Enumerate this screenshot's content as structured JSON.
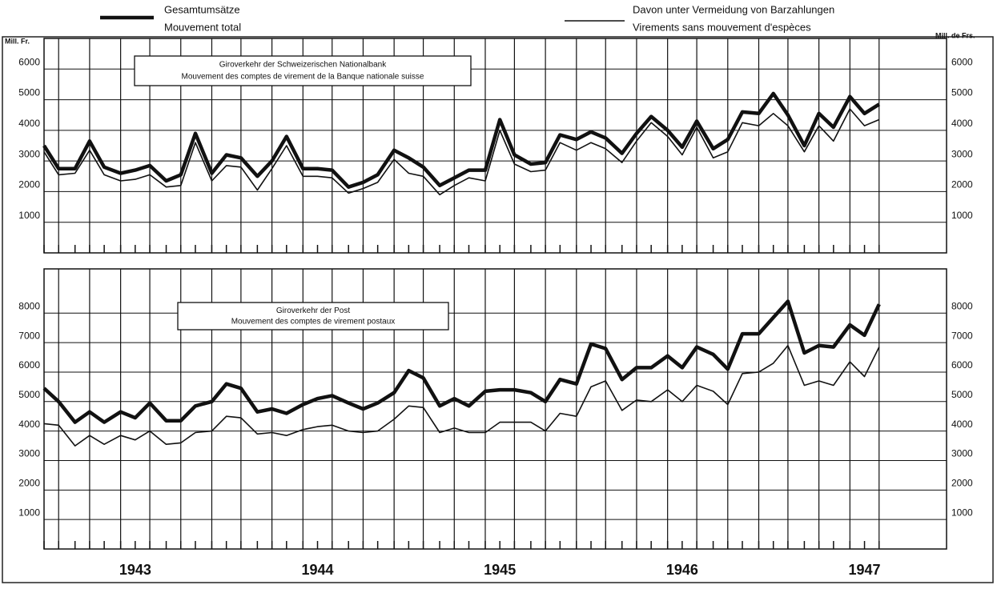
{
  "legend": [
    {
      "lines": [
        "Gesamtumsätze",
        "Mouvement total"
      ],
      "style": "thick"
    },
    {
      "lines": [
        "Davon unter Vermeidung von Barzahlungen",
        "Virements sans mouvement d'espèces"
      ],
      "style": "thin"
    }
  ],
  "chart_data": [
    {
      "type": "line",
      "title": "Giroverkehr der Schweizerischen Nationalbank",
      "subtitle": "Mouvement des comptes de virement de la Banque nationale suisse",
      "ylabel": "Mill. Fr.",
      "ylabel_right": "Mill. de Frs.",
      "ylim": [
        0,
        7000
      ],
      "yticks": [
        1000,
        2000,
        3000,
        4000,
        5000,
        6000
      ],
      "xlim": [
        1943,
        1947.95
      ],
      "grid": true,
      "x": [
        1943.0,
        1943.08,
        1943.17,
        1943.25,
        1943.33,
        1943.42,
        1943.5,
        1943.58,
        1943.67,
        1943.75,
        1943.83,
        1943.92,
        1944.0,
        1944.08,
        1944.17,
        1944.25,
        1944.33,
        1944.42,
        1944.5,
        1944.58,
        1944.67,
        1944.75,
        1944.83,
        1944.92,
        1945.0,
        1945.08,
        1945.17,
        1945.25,
        1945.33,
        1945.42,
        1945.5,
        1945.58,
        1945.67,
        1945.75,
        1945.83,
        1945.92,
        1946.0,
        1946.08,
        1946.17,
        1946.25,
        1946.33,
        1946.42,
        1946.5,
        1946.58,
        1946.67,
        1946.75,
        1946.83,
        1946.92,
        1947.0,
        1947.08,
        1947.17,
        1947.25,
        1947.33,
        1947.42,
        1947.5,
        1947.58
      ],
      "series": [
        {
          "style": "thick",
          "color": "#111111",
          "values": [
            3500,
            2750,
            2750,
            3650,
            2800,
            2600,
            2700,
            2850,
            2350,
            2550,
            3900,
            2600,
            3200,
            3100,
            2500,
            3000,
            3800,
            2750,
            2750,
            2700,
            2150,
            2300,
            2550,
            3350,
            3100,
            2800,
            2200,
            2450,
            2700,
            2700,
            4350,
            3200,
            2900,
            2950,
            3850,
            3700,
            3950,
            3750,
            3250,
            3900,
            4450,
            4000,
            3450,
            4300,
            3400,
            3700,
            4600,
            4550,
            5200,
            4500,
            3500,
            4550,
            4100,
            5100,
            4550,
            4850
          ]
        },
        {
          "style": "thin",
          "color": "#111111",
          "values": [
            3300,
            2550,
            2600,
            3350,
            2550,
            2350,
            2400,
            2550,
            2150,
            2200,
            3600,
            2350,
            2850,
            2800,
            2050,
            2750,
            3500,
            2500,
            2500,
            2450,
            1950,
            2100,
            2300,
            3050,
            2600,
            2500,
            1900,
            2200,
            2450,
            2350,
            4000,
            2900,
            2650,
            2700,
            3600,
            3350,
            3600,
            3400,
            2950,
            3650,
            4250,
            3800,
            3200,
            4100,
            3100,
            3300,
            4250,
            4150,
            4550,
            4150,
            3300,
            4150,
            3650,
            4700,
            4150,
            4350
          ]
        }
      ]
    },
    {
      "type": "line",
      "title": "Giroverkehr der Post",
      "subtitle": "Mouvement des comptes de virement postaux",
      "ylim": [
        0,
        9500
      ],
      "yticks": [
        1000,
        2000,
        3000,
        4000,
        5000,
        6000,
        7000,
        8000
      ],
      "xlim": [
        1943,
        1947.95
      ],
      "grid": true,
      "xticks": [
        {
          "value": 1943.5,
          "label": "1943"
        },
        {
          "value": 1944.5,
          "label": "1944"
        },
        {
          "value": 1945.5,
          "label": "1945"
        },
        {
          "value": 1946.5,
          "label": "1946"
        },
        {
          "value": 1947.5,
          "label": "1947"
        }
      ],
      "x": [
        1943.0,
        1943.08,
        1943.17,
        1943.25,
        1943.33,
        1943.42,
        1943.5,
        1943.58,
        1943.67,
        1943.75,
        1943.83,
        1943.92,
        1944.0,
        1944.08,
        1944.17,
        1944.25,
        1944.33,
        1944.42,
        1944.5,
        1944.58,
        1944.67,
        1944.75,
        1944.83,
        1944.92,
        1945.0,
        1945.08,
        1945.17,
        1945.25,
        1945.33,
        1945.42,
        1945.5,
        1945.58,
        1945.67,
        1945.75,
        1945.83,
        1945.92,
        1946.0,
        1946.08,
        1946.17,
        1946.25,
        1946.33,
        1946.42,
        1946.5,
        1946.58,
        1946.67,
        1946.75,
        1946.83,
        1946.92,
        1947.0,
        1947.08,
        1947.17,
        1947.25,
        1947.33,
        1947.42,
        1947.5,
        1947.58
      ],
      "series": [
        {
          "style": "thick",
          "color": "#111111",
          "values": [
            5450,
            5000,
            4300,
            4650,
            4300,
            4650,
            4450,
            4950,
            4350,
            4350,
            4850,
            5000,
            5600,
            5450,
            4650,
            4750,
            4600,
            4900,
            5100,
            5200,
            4950,
            4750,
            4950,
            5300,
            6050,
            5800,
            4850,
            5100,
            4850,
            5350,
            5400,
            5400,
            5300,
            5000,
            5750,
            5600,
            6950,
            6800,
            5750,
            6150,
            6150,
            6550,
            6150,
            6850,
            6600,
            6100,
            7300,
            7300,
            7850,
            8400,
            6650,
            6900,
            6850,
            7600,
            7250,
            8300
          ]
        },
        {
          "style": "thin",
          "color": "#111111",
          "values": [
            4250,
            4200,
            3500,
            3850,
            3550,
            3850,
            3700,
            4000,
            3550,
            3600,
            3950,
            4000,
            4500,
            4450,
            3900,
            3950,
            3850,
            4050,
            4150,
            4200,
            4000,
            3950,
            4000,
            4400,
            4850,
            4800,
            3950,
            4100,
            3950,
            3950,
            4300,
            4300,
            4300,
            4000,
            4600,
            4500,
            5500,
            5700,
            4700,
            5050,
            5000,
            5400,
            5000,
            5550,
            5350,
            4900,
            5950,
            6000,
            6300,
            6900,
            5550,
            5700,
            5550,
            6350,
            5850,
            6850
          ]
        }
      ]
    }
  ]
}
